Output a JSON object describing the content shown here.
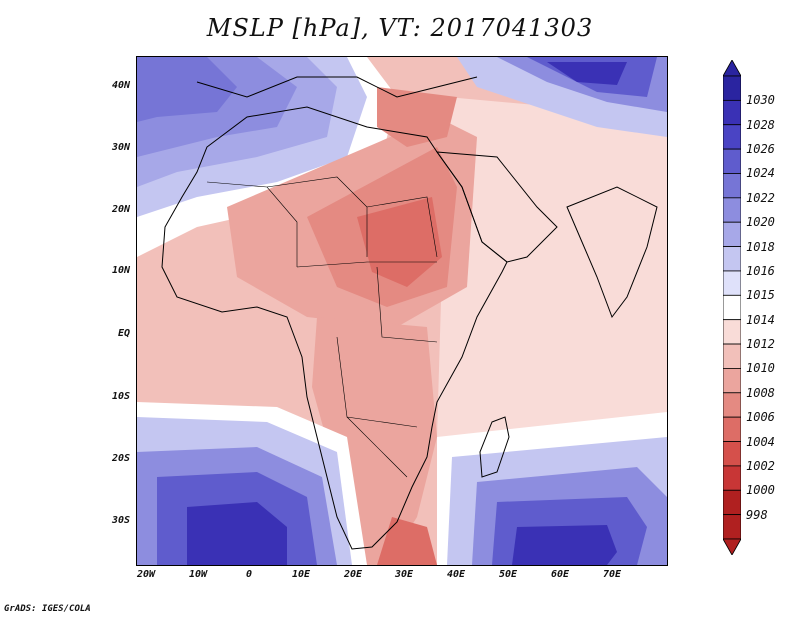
{
  "title": "MSLP [hPa], VT: 2017041303",
  "map": {
    "lat_labels": [
      "40N",
      "30N",
      "20N",
      "10N",
      "EQ",
      "10S",
      "20S",
      "30S"
    ],
    "lon_labels": [
      "20W",
      "10W",
      "0",
      "10E",
      "20E",
      "30E",
      "40E",
      "50E",
      "60E",
      "70E"
    ],
    "lat_range": [
      -37,
      45
    ],
    "lon_range": [
      -22,
      80
    ]
  },
  "colorbar": {
    "levels": [
      "1030",
      "1028",
      "1026",
      "1024",
      "1022",
      "1020",
      "1018",
      "1016",
      "1015",
      "1014",
      "1012",
      "1010",
      "1008",
      "1006",
      "1004",
      "1002",
      "1000",
      "998"
    ],
    "colors": {
      "1030": "#2a24a0",
      "1028": "#3a31b5",
      "1026": "#4a44c4",
      "1024": "#5f5ccd",
      "1022": "#7675d6",
      "1020": "#8d8ddf",
      "1018": "#a7a8e8",
      "1016": "#c4c6f1",
      "1015": "#dfe1fa",
      "1014": "#ffffff",
      "1012": "#f9dcd8",
      "1010": "#f2c0ba",
      "1008": "#eba59e",
      "1006": "#e48a82",
      "1004": "#dd6d66",
      "1002": "#d5504b",
      "1000": "#c83636",
      "998": "#b02020"
    }
  },
  "footer": "GrADS: IGES/COLA"
}
